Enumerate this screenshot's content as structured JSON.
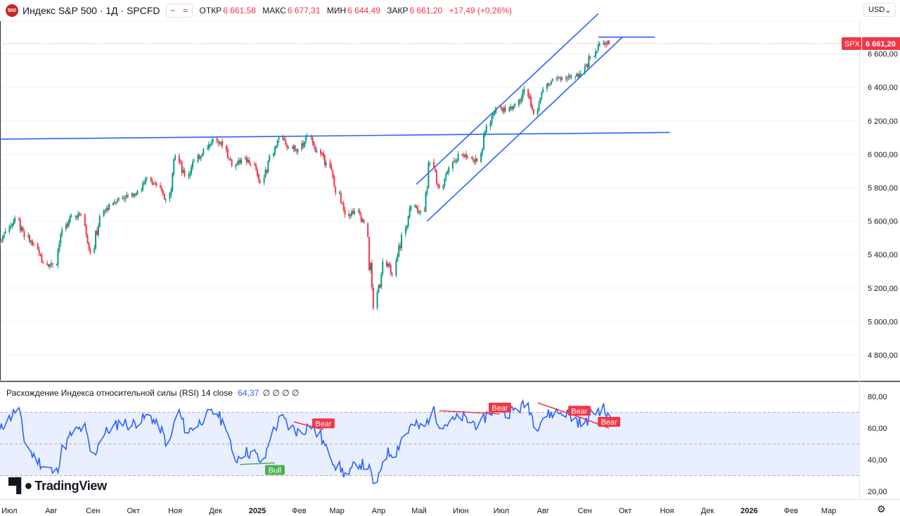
{
  "header": {
    "logo_text": "500",
    "symbol": "Индекс S&P 500 · 1Д · SPCFD",
    "flag_icon": "≈",
    "open_label": "ОТКР",
    "open_value": "6 661,58",
    "high_label": "МАКС",
    "high_value": "6 677,31",
    "low_label": "МИН",
    "low_value": "6 644,49",
    "close_label": "ЗАКР",
    "close_value": "6 661,20",
    "change": "+17,49 (+0,26%)"
  },
  "currency": {
    "label": "USD",
    "icon": "chevron-down-icon"
  },
  "price_scale": {
    "ticks": [
      {
        "value": 6600,
        "label": "6 600,00"
      },
      {
        "value": 6400,
        "label": "6 400,00"
      },
      {
        "value": 6200,
        "label": "6 200,00"
      },
      {
        "value": 6000,
        "label": "6 000,00"
      },
      {
        "value": 5800,
        "label": "5 800,00"
      },
      {
        "value": 5600,
        "label": "5 600,00"
      },
      {
        "value": 5400,
        "label": "5 400,00"
      },
      {
        "value": 5200,
        "label": "5 200,00"
      },
      {
        "value": 5000,
        "label": "5 000,00"
      },
      {
        "value": 4800,
        "label": "4 800,00"
      }
    ],
    "last_price": {
      "symbol": "SPX",
      "label": "6 661,20",
      "value": 6661.2
    }
  },
  "rsi": {
    "title": "Расхождение Индекса относительной силы (RSI)",
    "params": "14 close",
    "value": "64,37",
    "zeros": "∅ ∅ ∅ ∅",
    "ticks": [
      {
        "value": 80,
        "label": "80,00"
      },
      {
        "value": 60,
        "label": "60,00"
      },
      {
        "value": 40,
        "label": "40,00"
      },
      {
        "value": 20,
        "label": "20,00"
      }
    ],
    "band": [
      30,
      70
    ],
    "divergences": [
      {
        "label": "Bear",
        "from": {
          "date": "2025-01-28",
          "rsi": 64
        },
        "to": {
          "date": "2025-02-19",
          "rsi": 59
        }
      },
      {
        "label": "Bull",
        "from": {
          "date": "2024-12-19",
          "rsi": 37
        },
        "to": {
          "date": "2025-01-14",
          "rsi": 38
        }
      },
      {
        "label": "Bear",
        "from": {
          "date": "2025-05-16",
          "rsi": 71
        },
        "to": {
          "date": "2025-06-30",
          "rsi": 69
        }
      },
      {
        "label": "Bear",
        "from": {
          "date": "2025-07-28",
          "rsi": 76
        },
        "to": {
          "date": "2025-08-28",
          "rsi": 67
        }
      },
      {
        "label": "Bear",
        "from": {
          "date": "2025-08-28",
          "rsi": 67
        },
        "to": {
          "date": "2025-09-19",
          "rsi": 60
        }
      }
    ]
  },
  "time_axis": {
    "labels": [
      {
        "date": "2024-07-01",
        "label": "Июл"
      },
      {
        "date": "2024-08-01",
        "label": "Авг"
      },
      {
        "date": "2024-09-01",
        "label": "Сен"
      },
      {
        "date": "2024-10-01",
        "label": "Окт"
      },
      {
        "date": "2024-11-01",
        "label": "Ноя"
      },
      {
        "date": "2024-12-01",
        "label": "Дек"
      },
      {
        "date": "2025-01-01",
        "label": "2025"
      },
      {
        "date": "2025-02-01",
        "label": "Фев"
      },
      {
        "date": "2025-03-01",
        "label": "Мар"
      },
      {
        "date": "2025-04-01",
        "label": "Апр"
      },
      {
        "date": "2025-05-01",
        "label": "Май"
      },
      {
        "date": "2025-06-01",
        "label": "Июн"
      },
      {
        "date": "2025-07-01",
        "label": "Июл"
      },
      {
        "date": "2025-08-01",
        "label": "Авг"
      },
      {
        "date": "2025-09-01",
        "label": "Сен"
      },
      {
        "date": "2025-10-01",
        "label": "Окт"
      },
      {
        "date": "2025-11-01",
        "label": "Ноя"
      },
      {
        "date": "2025-12-01",
        "label": "Дек"
      },
      {
        "date": "2026-01-01",
        "label": "2026"
      },
      {
        "date": "2026-02-01",
        "label": "Фев"
      },
      {
        "date": "2026-03-01",
        "label": "Мар"
      }
    ]
  },
  "chart_data": {
    "type": "line",
    "title": "Индекс S&P 500 · 1Д · SPCFD",
    "ylim": [
      4700,
      6800
    ],
    "x_dates": [
      "2024-06-24",
      "2024-07-01",
      "2024-07-08",
      "2024-07-15",
      "2024-07-22",
      "2024-07-29",
      "2024-08-05",
      "2024-08-12",
      "2024-08-19",
      "2024-08-26",
      "2024-09-02",
      "2024-09-09",
      "2024-09-16",
      "2024-09-23",
      "2024-09-30",
      "2024-10-07",
      "2024-10-14",
      "2024-10-21",
      "2024-10-28",
      "2024-11-04",
      "2024-11-11",
      "2024-11-18",
      "2024-11-25",
      "2024-12-02",
      "2024-12-09",
      "2024-12-16",
      "2024-12-23",
      "2024-12-30",
      "2025-01-06",
      "2025-01-13",
      "2025-01-20",
      "2025-01-27",
      "2025-02-03",
      "2025-02-10",
      "2025-02-17",
      "2025-02-24",
      "2025-03-03",
      "2025-03-10",
      "2025-03-17",
      "2025-03-24",
      "2025-03-31",
      "2025-04-07",
      "2025-04-14",
      "2025-04-21",
      "2025-04-28",
      "2025-05-05",
      "2025-05-12",
      "2025-05-19",
      "2025-05-26",
      "2025-06-02",
      "2025-06-09",
      "2025-06-16",
      "2025-06-23",
      "2025-06-30",
      "2025-07-07",
      "2025-07-14",
      "2025-07-21",
      "2025-07-28",
      "2025-08-04",
      "2025-08-11",
      "2025-08-18",
      "2025-08-25",
      "2025-09-01",
      "2025-09-08",
      "2025-09-15",
      "2025-09-22"
    ],
    "series": [
      {
        "values": [
          5460,
          5540,
          5620,
          5505,
          5460,
          5350,
          5340,
          5550,
          5630,
          5640,
          5410,
          5630,
          5700,
          5740,
          5750,
          5780,
          5860,
          5810,
          5730,
          5990,
          5870,
          5960,
          6030,
          6090,
          6050,
          5930,
          5970,
          5940,
          5830,
          5990,
          6100,
          6040,
          6030,
          6110,
          6020,
          5950,
          5770,
          5640,
          5660,
          5590,
          5080,
          5360,
          5280,
          5520,
          5690,
          5660,
          5950,
          5800,
          5920,
          6000,
          5980,
          5960,
          6170,
          6280,
          6260,
          6300,
          6390,
          6240,
          6390,
          6450,
          6460,
          6460,
          6480,
          6580,
          6660,
          6661
        ]
      },
      {
        "name": "RSI",
        "values": [
          58,
          66,
          72,
          48,
          40,
          35,
          32,
          50,
          58,
          60,
          42,
          56,
          60,
          64,
          62,
          65,
          68,
          60,
          50,
          70,
          58,
          62,
          68,
          70,
          62,
          40,
          45,
          44,
          38,
          58,
          66,
          60,
          57,
          62,
          55,
          44,
          35,
          30,
          38,
          36,
          24,
          44,
          45,
          56,
          62,
          60,
          70,
          62,
          64,
          67,
          64,
          62,
          70,
          74,
          70,
          72,
          75,
          62,
          68,
          70,
          70,
          66,
          62,
          70,
          72,
          64.37
        ]
      }
    ],
    "trend_lines": [
      {
        "from": {
          "date": "2024-06-24",
          "price": 6090
        },
        "to": {
          "date": "2025-11-03",
          "price": 6130
        }
      },
      {
        "from": {
          "date": "2025-04-29",
          "price": 5820
        },
        "to": {
          "date": "2025-09-11",
          "price": 6840
        }
      },
      {
        "from": {
          "date": "2025-05-07",
          "price": 5600
        },
        "to": {
          "date": "2025-09-29",
          "price": 6700
        }
      },
      {
        "from": {
          "date": "2025-09-11",
          "price": 6700
        },
        "to": {
          "date": "2025-10-23",
          "price": 6700
        }
      }
    ],
    "colors": {
      "up": "#089981",
      "down": "#f23645",
      "line": "#2962ff",
      "bull": "#4caf50",
      "bear": "#f23645"
    }
  }
}
